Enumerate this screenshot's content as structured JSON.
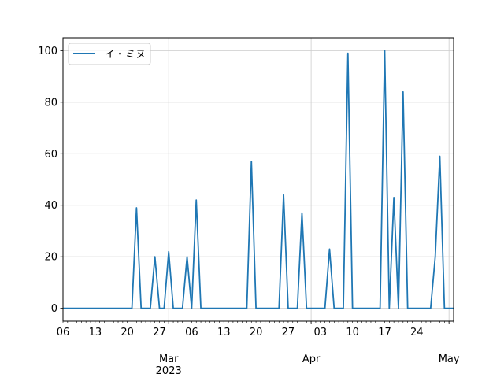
{
  "chart_data": {
    "type": "line",
    "title": "",
    "xlabel": "",
    "ylabel": "",
    "xlim": [
      "2023-02-06",
      "2023-05-02"
    ],
    "ylim": [
      -5,
      105
    ],
    "grid": true,
    "legend_placement": "upper-left",
    "yticks": [
      0,
      20,
      40,
      60,
      80,
      100
    ],
    "ytick_labels": [
      "0",
      "20",
      "40",
      "60",
      "80",
      "100"
    ],
    "xticks_major": [
      {
        "date": "2023-03-01",
        "label": "Mar",
        "sublabel": "2023"
      },
      {
        "date": "2023-04-01",
        "label": "Apr",
        "sublabel": ""
      },
      {
        "date": "2023-05-01",
        "label": "May",
        "sublabel": ""
      }
    ],
    "xticks_minor_labeled": [
      {
        "date": "2023-02-06",
        "label": "06"
      },
      {
        "date": "2023-02-13",
        "label": "13"
      },
      {
        "date": "2023-02-20",
        "label": "20"
      },
      {
        "date": "2023-02-27",
        "label": "27"
      },
      {
        "date": "2023-03-06",
        "label": "06"
      },
      {
        "date": "2023-03-13",
        "label": "13"
      },
      {
        "date": "2023-03-20",
        "label": "20"
      },
      {
        "date": "2023-03-27",
        "label": "27"
      },
      {
        "date": "2023-04-03",
        "label": "03"
      },
      {
        "date": "2023-04-10",
        "label": "10"
      },
      {
        "date": "2023-04-17",
        "label": "17"
      },
      {
        "date": "2023-04-24",
        "label": "24"
      }
    ],
    "series": [
      {
        "name": "イ・ミヌ",
        "color": "#1f77b4",
        "x": [
          "2023-02-06",
          "2023-02-07",
          "2023-02-08",
          "2023-02-09",
          "2023-02-10",
          "2023-02-11",
          "2023-02-12",
          "2023-02-13",
          "2023-02-14",
          "2023-02-15",
          "2023-02-16",
          "2023-02-17",
          "2023-02-18",
          "2023-02-19",
          "2023-02-20",
          "2023-02-21",
          "2023-02-22",
          "2023-02-23",
          "2023-02-24",
          "2023-02-25",
          "2023-02-26",
          "2023-02-27",
          "2023-02-28",
          "2023-03-01",
          "2023-03-02",
          "2023-03-03",
          "2023-03-04",
          "2023-03-05",
          "2023-03-06",
          "2023-03-07",
          "2023-03-08",
          "2023-03-09",
          "2023-03-10",
          "2023-03-11",
          "2023-03-12",
          "2023-03-13",
          "2023-03-14",
          "2023-03-15",
          "2023-03-16",
          "2023-03-17",
          "2023-03-18",
          "2023-03-19",
          "2023-03-20",
          "2023-03-21",
          "2023-03-22",
          "2023-03-23",
          "2023-03-24",
          "2023-03-25",
          "2023-03-26",
          "2023-03-27",
          "2023-03-28",
          "2023-03-29",
          "2023-03-30",
          "2023-03-31",
          "2023-04-01",
          "2023-04-02",
          "2023-04-03",
          "2023-04-04",
          "2023-04-05",
          "2023-04-06",
          "2023-04-07",
          "2023-04-08",
          "2023-04-09",
          "2023-04-10",
          "2023-04-11",
          "2023-04-12",
          "2023-04-13",
          "2023-04-14",
          "2023-04-15",
          "2023-04-16",
          "2023-04-17",
          "2023-04-18",
          "2023-04-19",
          "2023-04-20",
          "2023-04-21",
          "2023-04-22",
          "2023-04-23",
          "2023-04-24",
          "2023-04-25",
          "2023-04-26",
          "2023-04-27",
          "2023-04-28",
          "2023-04-29",
          "2023-04-30",
          "2023-05-01",
          "2023-05-02"
        ],
        "values": [
          0,
          0,
          0,
          0,
          0,
          0,
          0,
          0,
          0,
          0,
          0,
          0,
          0,
          0,
          0,
          0,
          39,
          0,
          0,
          0,
          20,
          0,
          0,
          22,
          0,
          0,
          0,
          20,
          0,
          42,
          0,
          0,
          0,
          0,
          0,
          0,
          0,
          0,
          0,
          0,
          0,
          57,
          0,
          0,
          0,
          0,
          0,
          0,
          44,
          0,
          0,
          0,
          37,
          0,
          0,
          0,
          0,
          0,
          23,
          0,
          0,
          0,
          99,
          0,
          0,
          0,
          0,
          0,
          0,
          0,
          100,
          0,
          43,
          0,
          84,
          0,
          0,
          0,
          0,
          0,
          0,
          20,
          59,
          0,
          0,
          0
        ]
      }
    ]
  }
}
